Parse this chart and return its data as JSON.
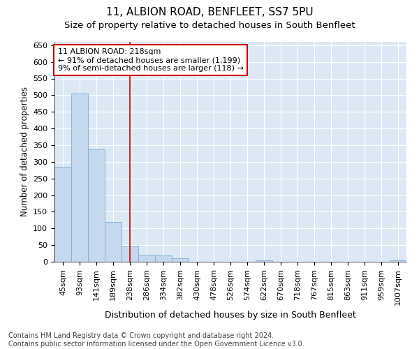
{
  "title": "11, ALBION ROAD, BENFLEET, SS7 5PU",
  "subtitle": "Size of property relative to detached houses in South Benfleet",
  "xlabel": "Distribution of detached houses by size in South Benfleet",
  "ylabel": "Number of detached properties",
  "bar_color": "#c5d8ee",
  "bar_edge_color": "#7aadd4",
  "background_color": "#dce9f5",
  "grid_color": "#ffffff",
  "fig_background": "#ffffff",
  "categories": [
    "45sqm",
    "93sqm",
    "141sqm",
    "189sqm",
    "238sqm",
    "286sqm",
    "334sqm",
    "382sqm",
    "430sqm",
    "478sqm",
    "526sqm",
    "574sqm",
    "622sqm",
    "670sqm",
    "718sqm",
    "767sqm",
    "815sqm",
    "863sqm",
    "911sqm",
    "959sqm",
    "1007sqm"
  ],
  "values": [
    285,
    505,
    338,
    120,
    47,
    20,
    18,
    10,
    0,
    0,
    0,
    0,
    5,
    0,
    0,
    0,
    0,
    0,
    0,
    0,
    5
  ],
  "vline_color": "#cc0000",
  "vline_x": 4.0,
  "annotation_text": "11 ALBION ROAD: 218sqm\n← 91% of detached houses are smaller (1,199)\n9% of semi-detached houses are larger (118) →",
  "annotation_box_color": "#ffffff",
  "annotation_box_edge_color": "#cc0000",
  "ylim": [
    0,
    660
  ],
  "yticks": [
    0,
    50,
    100,
    150,
    200,
    250,
    300,
    350,
    400,
    450,
    500,
    550,
    600,
    650
  ],
  "footnote": "Contains HM Land Registry data © Crown copyright and database right 2024.\nContains public sector information licensed under the Open Government Licence v3.0.",
  "title_fontsize": 11,
  "subtitle_fontsize": 9.5,
  "xlabel_fontsize": 9,
  "ylabel_fontsize": 8.5,
  "tick_fontsize": 8,
  "footnote_fontsize": 7
}
